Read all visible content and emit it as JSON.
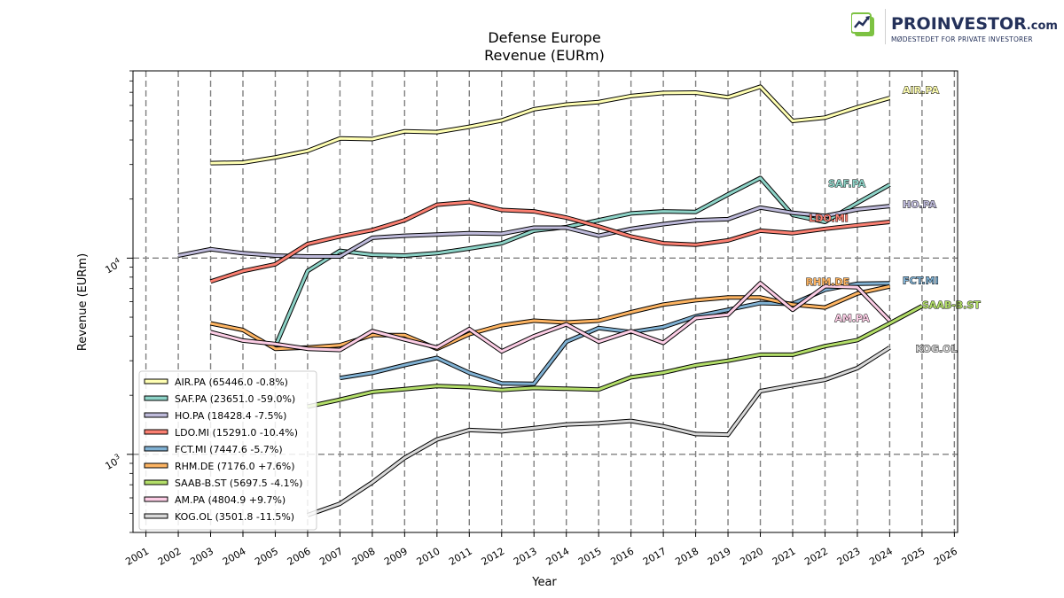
{
  "brand": {
    "name": "PROINVESTOR",
    "domain": ".com",
    "tagline": "MØDESTEDET FOR PRIVATE INVESTORER",
    "colors": {
      "primary": "#24315a",
      "accent": "#7dc242"
    }
  },
  "chart_data": {
    "type": "line",
    "title": "Defense Europe",
    "subtitle": "Revenue (EURm)",
    "xlabel": "Year",
    "ylabel": "Revenue (EURm)",
    "yscale": "log",
    "xlim": [
      2000.6,
      2026.1
    ],
    "ylim": [
      400,
      90000
    ],
    "xticks": [
      "2001",
      "2002",
      "2003",
      "2004",
      "2005",
      "2006",
      "2007",
      "2008",
      "2009",
      "2010",
      "2011",
      "2012",
      "2013",
      "2014",
      "2015",
      "2016",
      "2017",
      "2018",
      "2019",
      "2020",
      "2021",
      "2022",
      "2023",
      "2024",
      "2025",
      "2026"
    ],
    "yticks": [
      {
        "value": 1000,
        "base": "10",
        "exp": "3"
      },
      {
        "value": 10000,
        "base": "10",
        "exp": "4"
      }
    ],
    "grid": "dashed, major ticks",
    "legend_position": "lower-left",
    "series": [
      {
        "name": "AIR.PA",
        "legend": "AIR.PA (65446.0 -0.8%)",
        "color": "#ffffb3",
        "label_at": [
          2024.4,
          72000
        ],
        "x": [
          2003,
          2004,
          2005,
          2006,
          2007,
          2008,
          2009,
          2010,
          2011,
          2012,
          2013,
          2014,
          2015,
          2016,
          2017,
          2018,
          2019,
          2020,
          2021,
          2022,
          2023,
          2024
        ],
        "y": [
          30500,
          30700,
          32600,
          35200,
          40700,
          40400,
          44300,
          43900,
          46700,
          50300,
          57400,
          60600,
          62400,
          67000,
          69500,
          69800,
          66000,
          74700,
          50000,
          52000,
          58700,
          65446
        ]
      },
      {
        "name": "SAF.PA",
        "legend": "SAF.PA (23651.0 -59.0%)",
        "color": "#8dd3c7",
        "label_at": [
          2022.1,
          24000
        ],
        "x": [
          2005,
          2006,
          2007,
          2008,
          2009,
          2010,
          2011,
          2012,
          2013,
          2014,
          2015,
          2016,
          2017,
          2018,
          2019,
          2020,
          2021,
          2022,
          2023,
          2024
        ],
        "y": [
          3550,
          8600,
          10900,
          10400,
          10300,
          10600,
          11200,
          11900,
          13800,
          14400,
          15600,
          16900,
          17300,
          17200,
          21100,
          25600,
          16600,
          15300,
          19100,
          23651
        ]
      },
      {
        "name": "HO.PA",
        "legend": "HO.PA (18428.4 -7.5%)",
        "color": "#bebada",
        "label_at": [
          2024.4,
          18800
        ],
        "x": [
          2002,
          2003,
          2004,
          2005,
          2006,
          2007,
          2008,
          2009,
          2010,
          2011,
          2012,
          2013,
          2014,
          2015,
          2016,
          2017,
          2018,
          2019,
          2020,
          2021,
          2022,
          2023,
          2024
        ],
        "y": [
          10300,
          11100,
          10600,
          10300,
          10200,
          10200,
          12700,
          13000,
          13200,
          13400,
          13300,
          14300,
          14300,
          13000,
          14100,
          14900,
          15600,
          15800,
          18100,
          17000,
          16400,
          17700,
          18428
        ]
      },
      {
        "name": "LDO.MI",
        "legend": "LDO.MI (15291.0 -10.4%)",
        "color": "#fb8072",
        "label_at": [
          2021.5,
          16000
        ],
        "x": [
          2003,
          2004,
          2005,
          2006,
          2007,
          2008,
          2009,
          2010,
          2011,
          2012,
          2013,
          2014,
          2015,
          2016,
          2017,
          2018,
          2019,
          2020,
          2021,
          2022,
          2023,
          2024
        ],
        "y": [
          7600,
          8600,
          9300,
          11800,
          12900,
          13900,
          15600,
          18700,
          19300,
          17600,
          17300,
          16100,
          14500,
          12900,
          11900,
          11700,
          12300,
          13800,
          13400,
          14100,
          14700,
          15291
        ]
      },
      {
        "name": "FCT.MI",
        "legend": "FCT.MI (7447.6 -5.7%)",
        "color": "#80b1d3",
        "label_at": [
          2024.4,
          7700
        ],
        "x": [
          2007,
          2008,
          2009,
          2010,
          2011,
          2012,
          2013,
          2014,
          2015,
          2016,
          2017,
          2018,
          2019,
          2020,
          2021,
          2022,
          2023,
          2024
        ],
        "y": [
          2450,
          2600,
          2850,
          3100,
          2600,
          2300,
          2290,
          3750,
          4400,
          4200,
          4450,
          5050,
          5450,
          5900,
          5850,
          6900,
          7400,
          7448
        ]
      },
      {
        "name": "RHM.DE",
        "legend": "RHM.DE (7176.0 +7.6%)",
        "color": "#fdb462",
        "label_at": [
          2021.4,
          7600
        ],
        "x": [
          2003,
          2004,
          2005,
          2006,
          2007,
          2008,
          2009,
          2010,
          2011,
          2012,
          2013,
          2014,
          2015,
          2016,
          2017,
          2018,
          2019,
          2020,
          2021,
          2022,
          2023,
          2024
        ],
        "y": [
          4650,
          4300,
          3450,
          3500,
          3600,
          4050,
          4050,
          3450,
          4100,
          4550,
          4800,
          4700,
          4800,
          5300,
          5800,
          6100,
          6300,
          6300,
          5800,
          5600,
          6600,
          7176
        ]
      },
      {
        "name": "SAAB-B.ST",
        "legend": "SAAB-B.ST (5697.5 -4.1%)",
        "color": "#b3de69",
        "label_at": [
          2025.0,
          5800
        ],
        "x": [
          2006,
          2007,
          2008,
          2009,
          2010,
          2011,
          2012,
          2013,
          2014,
          2015,
          2016,
          2017,
          2018,
          2019,
          2020,
          2021,
          2022,
          2023,
          2024,
          2025
        ],
        "y": [
          1750,
          1900,
          2080,
          2150,
          2230,
          2200,
          2130,
          2180,
          2160,
          2140,
          2470,
          2610,
          2840,
          3000,
          3220,
          3220,
          3560,
          3820,
          4650,
          5698
        ]
      },
      {
        "name": "AM.PA",
        "legend": "AM.PA (4804.9 +9.7%)",
        "color": "#fccde5",
        "label_at": [
          2022.3,
          4950
        ],
        "x": [
          2003,
          2004,
          2005,
          2006,
          2007,
          2008,
          2009,
          2010,
          2011,
          2012,
          2013,
          2014,
          2015,
          2016,
          2017,
          2018,
          2019,
          2020,
          2021,
          2022,
          2023,
          2024
        ],
        "y": [
          4200,
          3800,
          3650,
          3450,
          3400,
          4250,
          3850,
          3500,
          4350,
          3350,
          4000,
          4600,
          3750,
          4250,
          3700,
          4950,
          5150,
          7450,
          5450,
          7200,
          7100,
          4805
        ]
      },
      {
        "name": "KOG.OL",
        "legend": "KOG.OL (3501.8 -11.5%)",
        "color": "#d9d9d9",
        "label_at": [
          2024.8,
          3450
        ],
        "x": [
          2006,
          2007,
          2008,
          2009,
          2010,
          2011,
          2012,
          2013,
          2014,
          2015,
          2016,
          2017,
          2018,
          2019,
          2020,
          2021,
          2022,
          2023,
          2024
        ],
        "y": [
          490,
          560,
          720,
          960,
          1190,
          1330,
          1310,
          1360,
          1420,
          1440,
          1480,
          1390,
          1270,
          1260,
          2100,
          2250,
          2400,
          2750,
          3502
        ]
      }
    ]
  }
}
